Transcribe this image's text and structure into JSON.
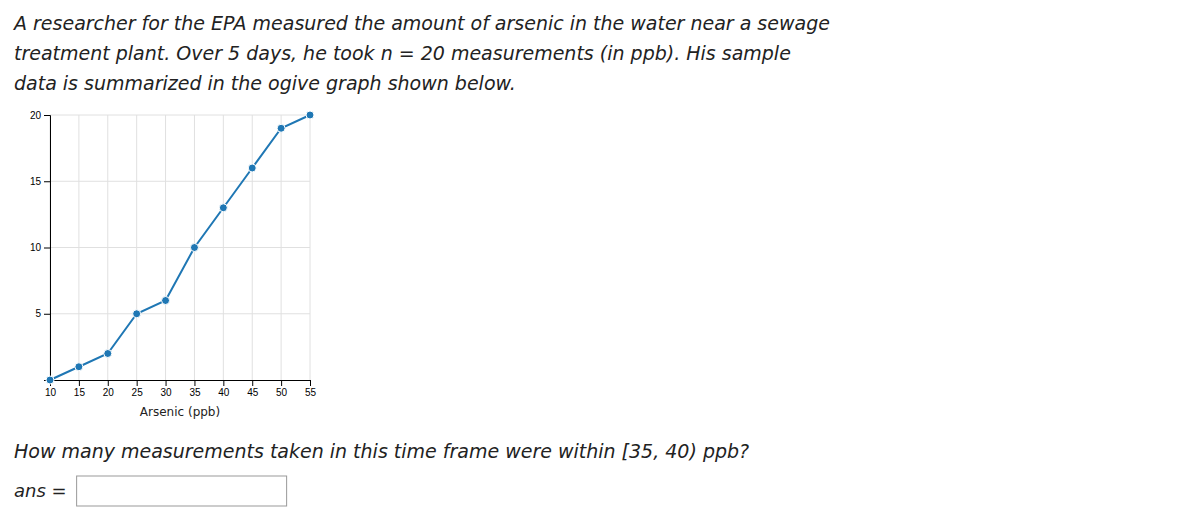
{
  "chart_data": {
    "type": "line",
    "annotations": [
      "A researcher for the EPA measured the amount of arsenic in the water near a sewage",
      "treatment plant. Over 5 days, he took n = 20 measurements (in ppb). His sample",
      "data is summarized in the ogive graph shown below.",
      "How many measurements taken in this time frame were within [35, 40) ppb?",
      "ans ="
    ],
    "xlabel": "Arsenic (ppb)",
    "x": [
      10,
      15,
      20,
      25,
      30,
      35,
      40,
      45,
      50,
      55
    ],
    "values": [
      0,
      1,
      2,
      5,
      6,
      10,
      13,
      16,
      19,
      20
    ],
    "xlim": [
      10,
      55
    ],
    "ylim": [
      0,
      20
    ],
    "xticks": [
      10,
      15,
      20,
      25,
      30,
      35,
      40,
      45,
      50,
      55
    ],
    "yticks": [
      5,
      10,
      15,
      20
    ],
    "grid": true,
    "marker": "circle"
  }
}
